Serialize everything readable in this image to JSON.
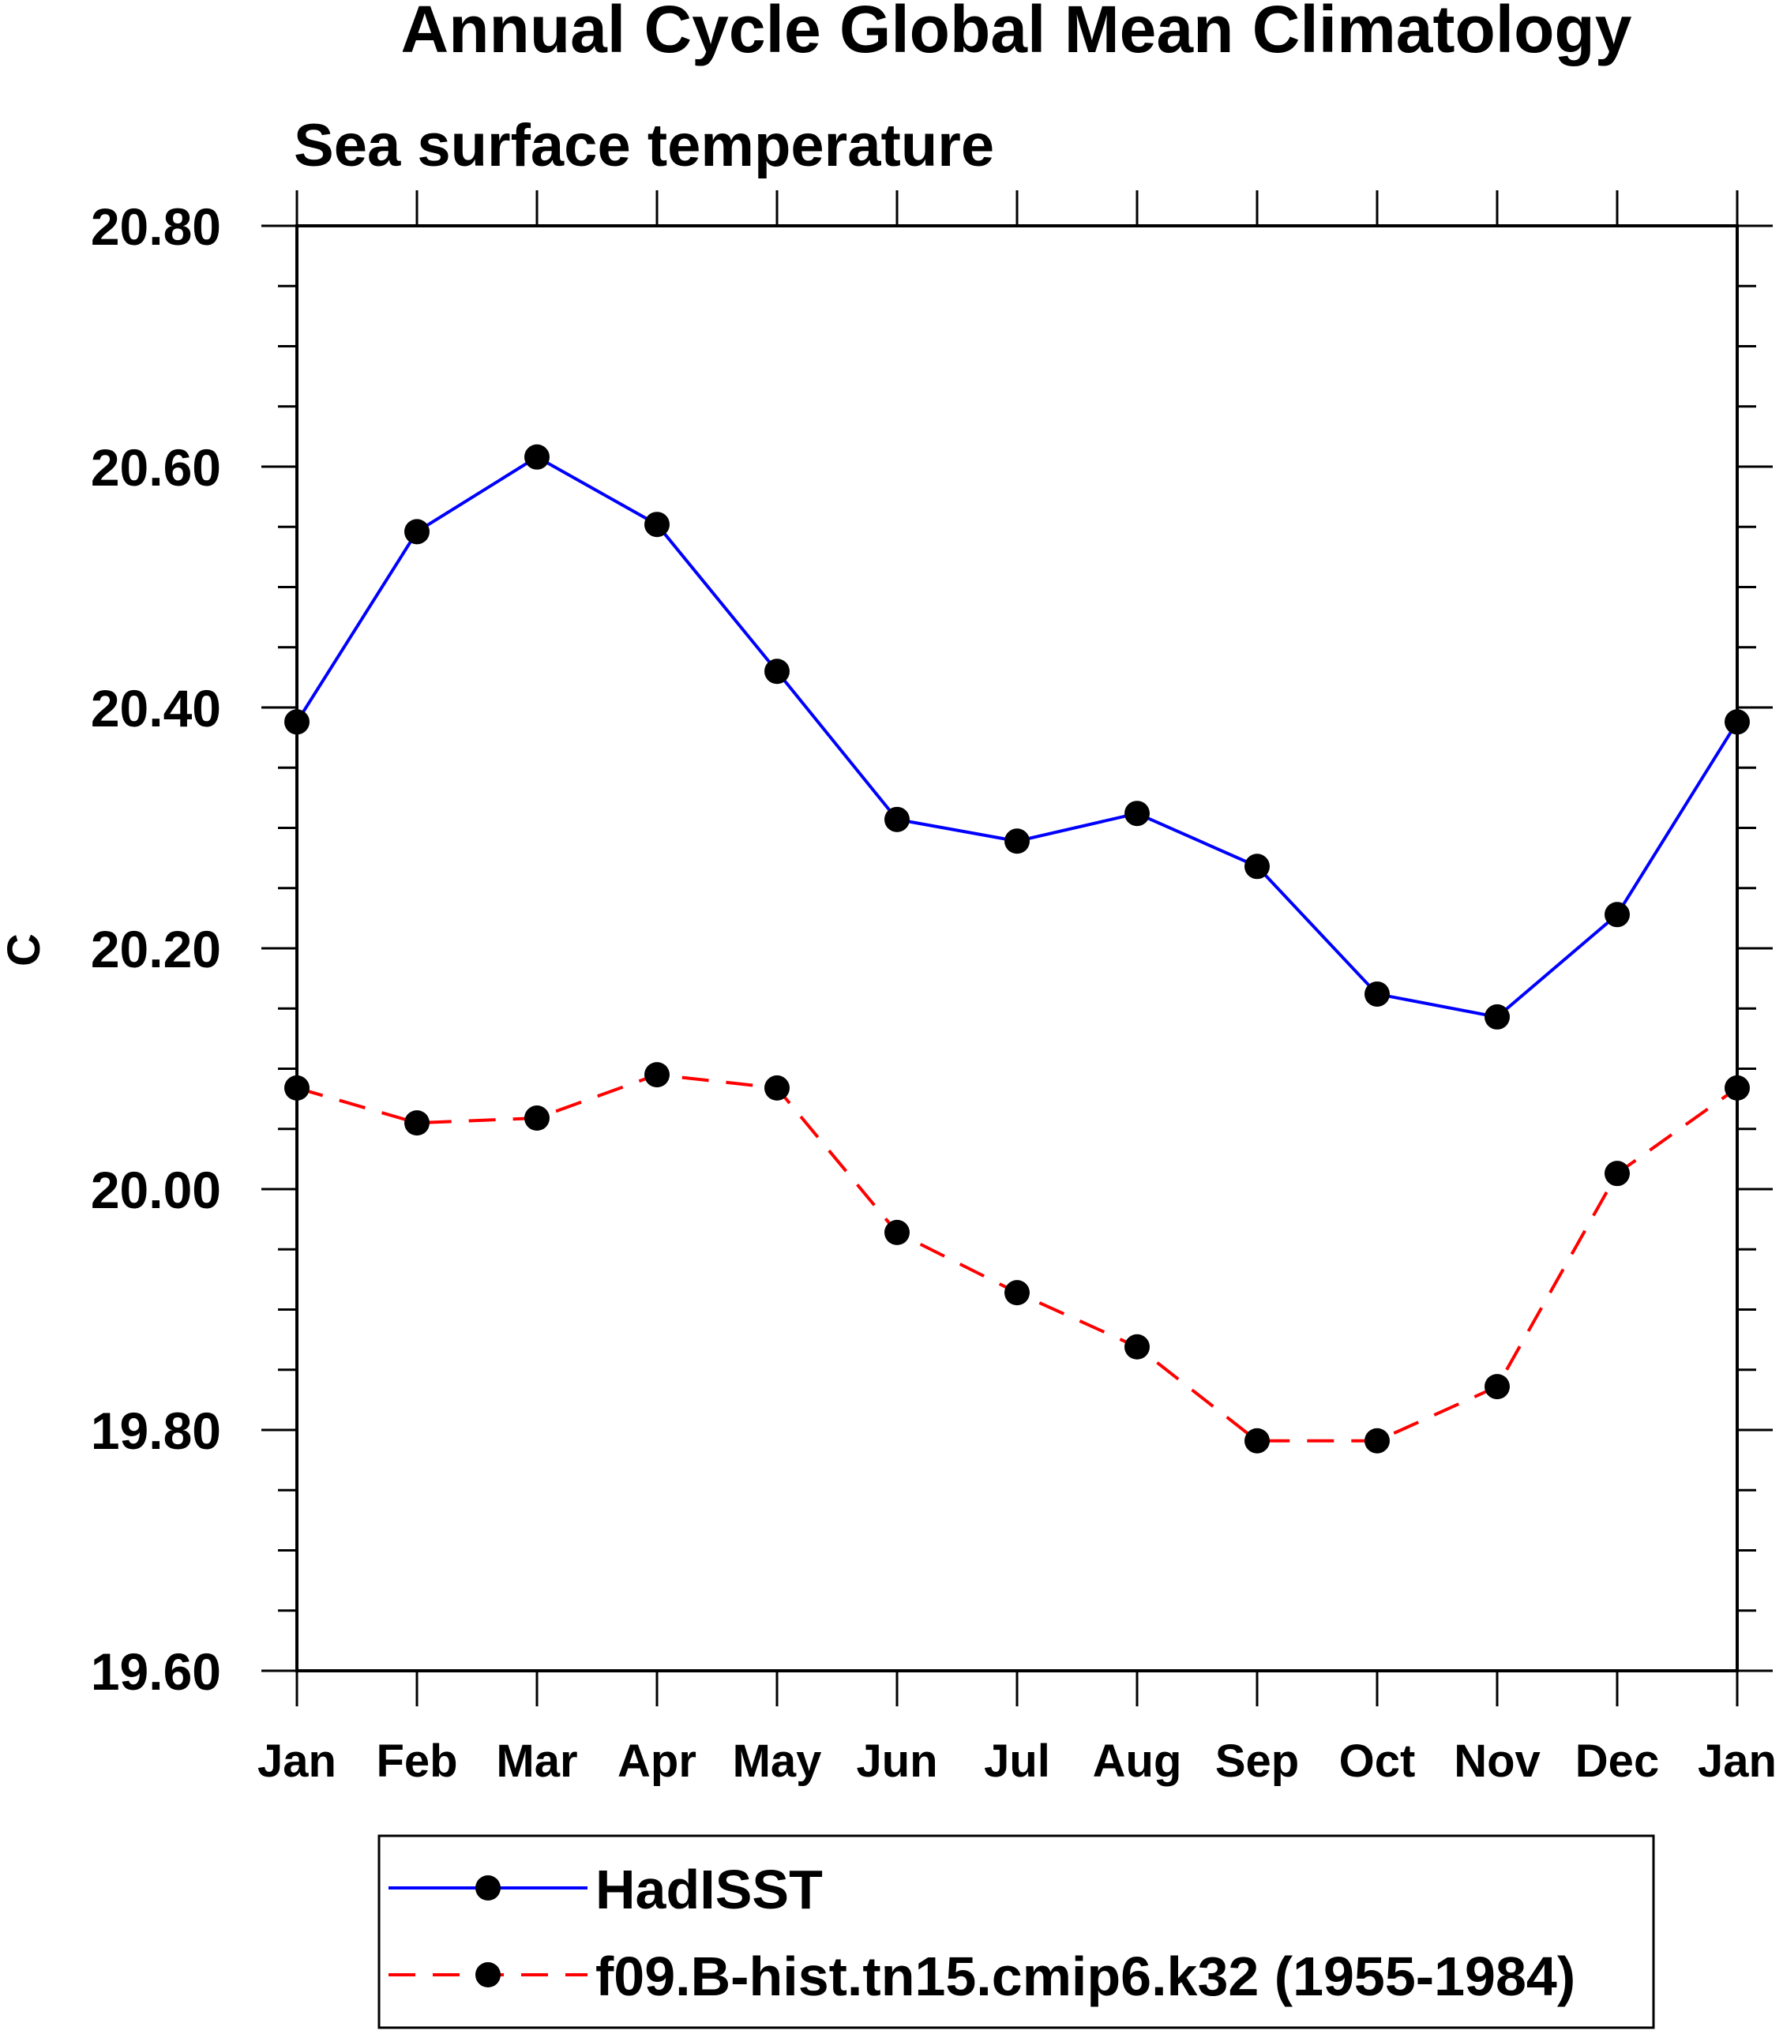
{
  "title": "Annual Cycle Global Mean Climatology",
  "subtitle": "Sea surface temperature",
  "chart_data": {
    "type": "line",
    "title": "Annual Cycle Global Mean Climatology",
    "subtitle": "Sea surface temperature",
    "xlabel": "",
    "ylabel": "C",
    "categories": [
      "Jan",
      "Feb",
      "Mar",
      "Apr",
      "May",
      "Jun",
      "Jul",
      "Aug",
      "Sep",
      "Oct",
      "Nov",
      "Dec",
      "Jan"
    ],
    "ylim": [
      19.6,
      20.8
    ],
    "yticks": [
      19.6,
      19.8,
      20.0,
      20.2,
      20.4,
      20.6,
      20.8
    ],
    "ytick_labels": [
      "19.60",
      "19.80",
      "20.00",
      "20.20",
      "20.40",
      "20.60",
      "20.80"
    ],
    "grid": false,
    "legend_position": "bottom",
    "series": [
      {
        "name": "HadISST",
        "color": "#0000ff",
        "line_style": "solid",
        "marker": "filled-circle",
        "values": [
          20.388,
          20.546,
          20.608,
          20.552,
          20.43,
          20.307,
          20.289,
          20.312,
          20.268,
          20.162,
          20.143,
          20.228,
          20.388
        ]
      },
      {
        "name": "f09.B-hist.tn15.cmip6.k32 (1955-1984)",
        "color": "#ff0000",
        "line_style": "dashed",
        "marker": "filled-circle",
        "values": [
          20.084,
          20.055,
          20.059,
          20.095,
          20.084,
          19.964,
          19.914,
          19.869,
          19.791,
          19.791,
          19.836,
          20.013,
          20.084
        ]
      }
    ]
  }
}
